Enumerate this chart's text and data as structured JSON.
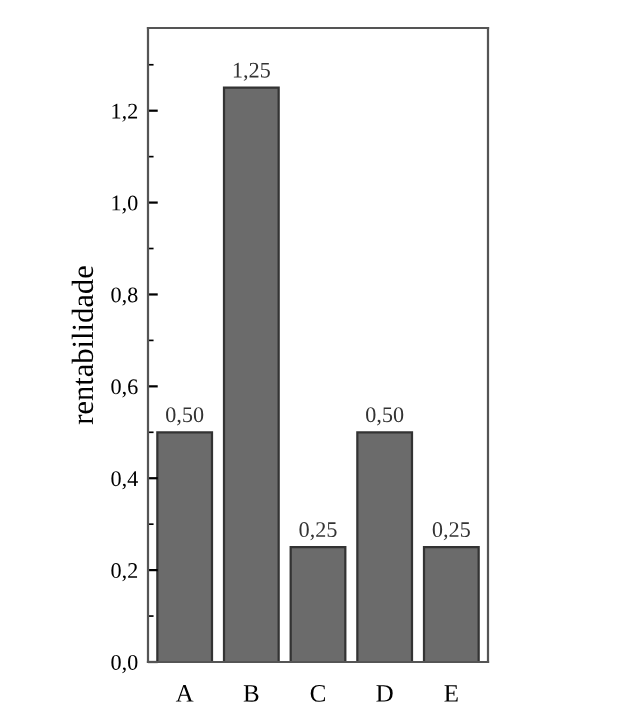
{
  "chart_data": {
    "type": "bar",
    "ylabel": "rentabilidade",
    "categories": [
      "A",
      "B",
      "C",
      "D",
      "E"
    ],
    "values": [
      0.5,
      1.25,
      0.25,
      0.5,
      0.25
    ],
    "value_labels": [
      "0,50",
      "1,25",
      "0,25",
      "0,50",
      "0,25"
    ],
    "color": "#6b6b6b",
    "ylim": [
      0,
      1.38
    ],
    "yticks": [
      {
        "value": 0,
        "label": "0,0"
      },
      {
        "value": 0.2,
        "label": "0,2"
      },
      {
        "value": 0.4,
        "label": "0,4"
      },
      {
        "value": 0.6,
        "label": "0,6"
      },
      {
        "value": 0.8,
        "label": "0,8"
      },
      {
        "value": 1.0,
        "label": "1,0"
      },
      {
        "value": 1.2,
        "label": "1,2"
      }
    ],
    "grid": false
  }
}
